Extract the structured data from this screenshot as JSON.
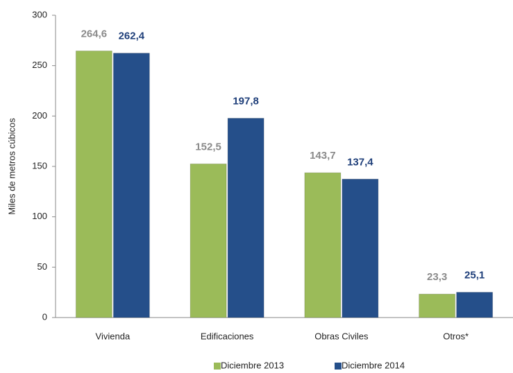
{
  "chart_data": {
    "type": "bar",
    "y_label": "Miles de metros cúbicos",
    "categories": [
      "Vivienda",
      "Edificaciones",
      "Obras Civiles",
      "Otros*"
    ],
    "series": [
      {
        "name": "Diciembre 2013",
        "color": "#9bbb59",
        "label_color": "#8a8a8a",
        "values": [
          264.6,
          152.5,
          143.7,
          23.3
        ],
        "value_labels": [
          "264,6",
          "152,5",
          "143,7",
          "23,3"
        ]
      },
      {
        "name": "Diciembre 2014",
        "color": "#254f8a",
        "label_color": "#1f3f7a",
        "values": [
          262.4,
          197.8,
          137.4,
          25.1
        ],
        "value_labels": [
          "262,4",
          "197,8",
          "137,4",
          "25,1"
        ]
      }
    ],
    "ylim": [
      0,
      300
    ],
    "yticks": [
      0,
      50,
      100,
      150,
      200,
      250,
      300
    ],
    "grid": false,
    "legend": "bottom"
  }
}
